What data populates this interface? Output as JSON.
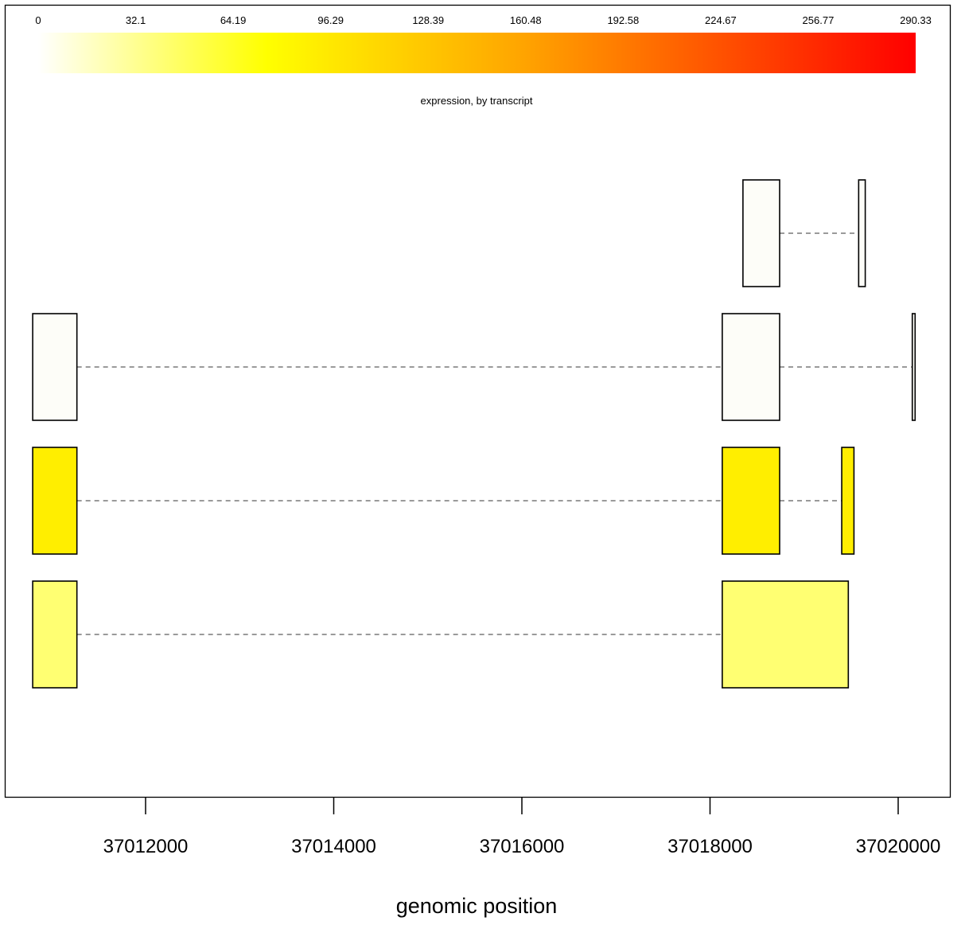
{
  "chart_data": {
    "type": "gene_structure",
    "title": "",
    "xlabel": "genomic position",
    "ylabel": "",
    "xlim": [
      37010870,
      37020530
    ],
    "x_ticks": [
      37012000,
      37014000,
      37016000,
      37018000,
      37020000
    ],
    "x_tick_labels": [
      "37012000",
      "37014000",
      "37016000",
      "37018000",
      "37020000"
    ],
    "color_scale": {
      "title": "expression, by transcript",
      "min": 0,
      "max": 290.33,
      "tick_labels": [
        "0",
        "32.1",
        "64.19",
        "96.29",
        "128.39",
        "160.48",
        "192.58",
        "224.67",
        "256.77",
        "290.33"
      ],
      "colors": [
        "#ffffff",
        "#ffff00",
        "#ffa500",
        "#ff0000"
      ]
    },
    "transcripts": [
      {
        "expression": 1,
        "color": "#fdfdf8",
        "exons": [
          [
            37018350,
            37018740
          ],
          [
            37019580,
            37019650
          ]
        ]
      },
      {
        "expression": 1,
        "color": "#fdfdf8",
        "exons": [
          [
            37010800,
            37011270
          ],
          [
            37018130,
            37018740
          ],
          [
            37020150,
            37020180
          ]
        ]
      },
      {
        "expression": 58,
        "color": "#ffee00",
        "exons": [
          [
            37010800,
            37011270
          ],
          [
            37018130,
            37018740
          ],
          [
            37019400,
            37019530
          ]
        ]
      },
      {
        "expression": 38,
        "color": "#ffff72",
        "exons": [
          [
            37010800,
            37011270
          ],
          [
            37018130,
            37019470
          ]
        ]
      }
    ]
  }
}
